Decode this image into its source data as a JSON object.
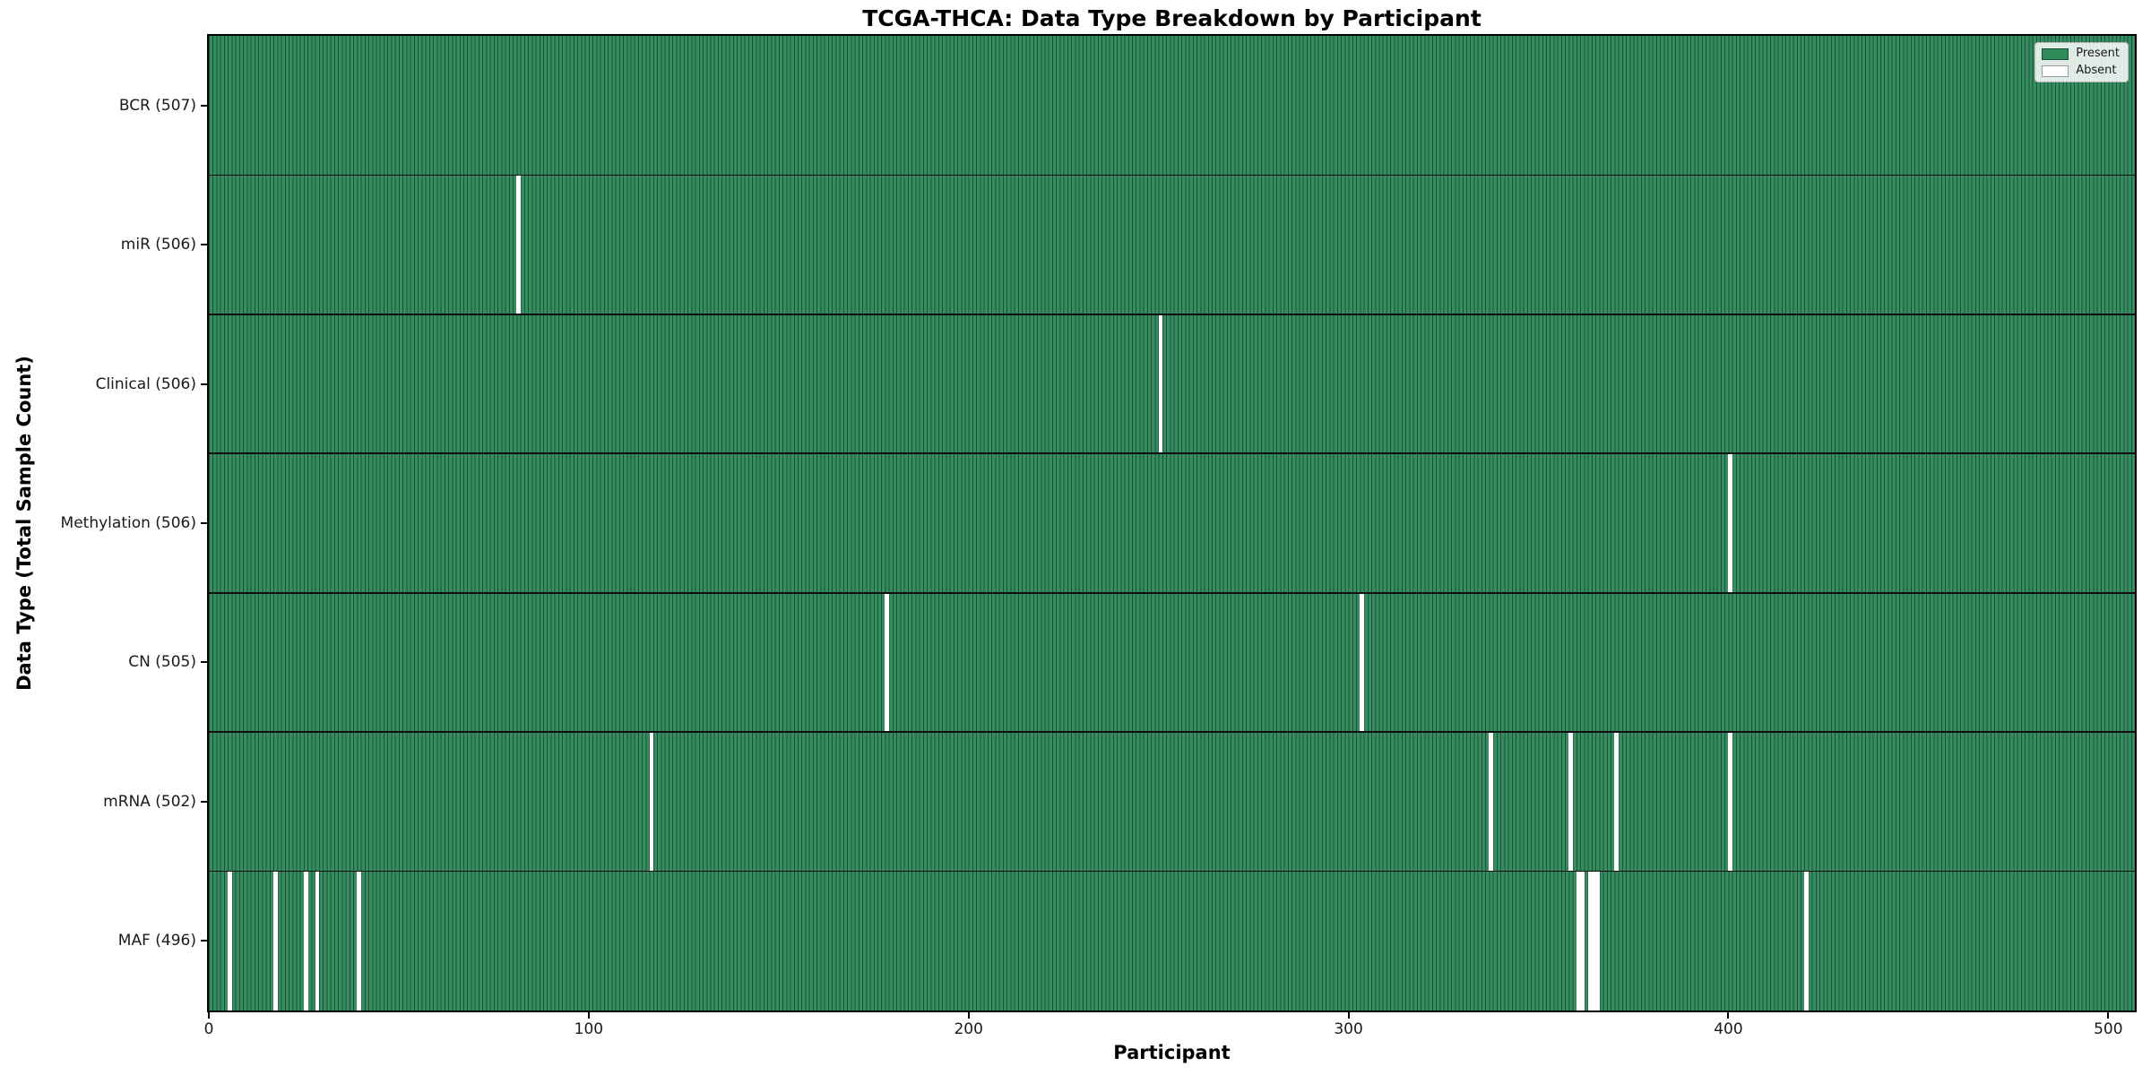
{
  "figure": {
    "kind": "matplotlib-style presence/absence matrix"
  },
  "chart_data": {
    "type": "heatmap",
    "title": "TCGA-THCA: Data Type Breakdown by Participant",
    "xlabel": "Participant",
    "ylabel": "Data Type (Total Sample Count)",
    "n_participants": 507,
    "xlim": [
      0,
      507
    ],
    "x_ticks": [
      0,
      100,
      200,
      300,
      400,
      500
    ],
    "grid": false,
    "legend": {
      "position": "upper right",
      "entries": [
        {
          "label": "Present",
          "color": "#2e8b57"
        },
        {
          "label": "Absent",
          "color": "#ffffff"
        }
      ]
    },
    "colors": {
      "present_fill": "#368e60",
      "bar_edge": "#1e5038",
      "absent_fill": "#ffffff",
      "row_separator": "#0e0e0e",
      "frame": "#000000"
    },
    "rows": [
      {
        "name": "bcr",
        "label": "BCR (507)",
        "total": 507,
        "absent_participants": []
      },
      {
        "name": "mir",
        "label": "miR (506)",
        "total": 506,
        "absent_participants": [
          81
        ]
      },
      {
        "name": "clinical",
        "label": "Clinical (506)",
        "total": 506,
        "absent_participants": [
          250
        ]
      },
      {
        "name": "methylation",
        "label": "Methylation (506)",
        "total": 506,
        "absent_participants": [
          400
        ]
      },
      {
        "name": "cn",
        "label": "CN (505)",
        "total": 505,
        "absent_participants": [
          178,
          303
        ]
      },
      {
        "name": "mrna",
        "label": "mRNA (502)",
        "total": 502,
        "absent_participants": [
          116,
          337,
          358,
          370,
          400
        ]
      },
      {
        "name": "maf",
        "label": "MAF (496)",
        "total": 496,
        "absent_participants": [
          5,
          17,
          25,
          28,
          39,
          360,
          361,
          363,
          364,
          365,
          420
        ]
      }
    ]
  }
}
